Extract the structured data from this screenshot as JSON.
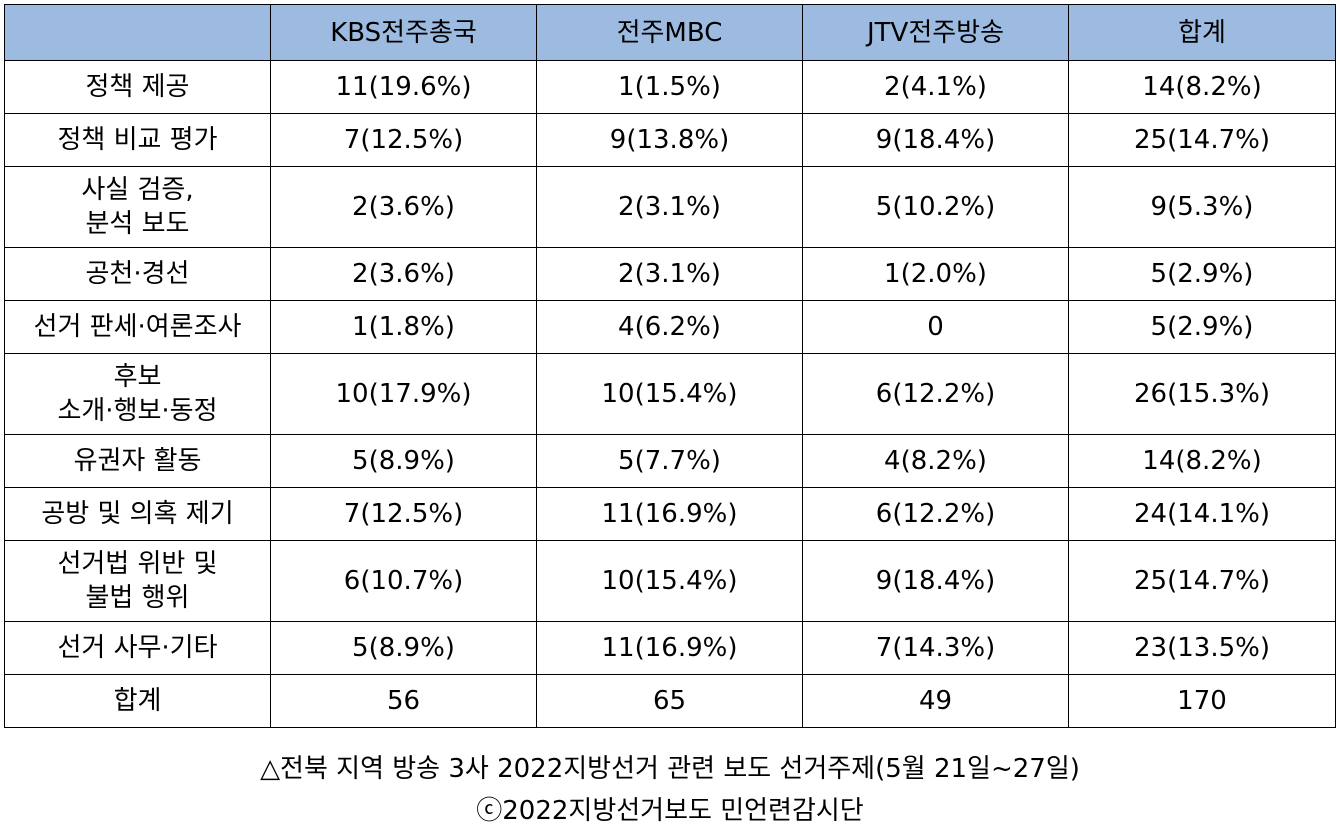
{
  "table": {
    "headers": [
      "",
      "KBS전주총국",
      "전주MBC",
      "JTV전주방송",
      "합계"
    ],
    "rows": [
      {
        "label": "정책 제공",
        "cells": [
          "11(19.6%)",
          "1(1.5%)",
          "2(4.1%)",
          "14(8.2%)"
        ]
      },
      {
        "label": "정책 비교 평가",
        "cells": [
          "7(12.5%)",
          "9(13.8%)",
          "9(18.4%)",
          "25(14.7%)"
        ]
      },
      {
        "label": "사실 검증,\n분석 보도",
        "cells": [
          "2(3.6%)",
          "2(3.1%)",
          "5(10.2%)",
          "9(5.3%)"
        ]
      },
      {
        "label": "공천·경선",
        "cells": [
          "2(3.6%)",
          "2(3.1%)",
          "1(2.0%)",
          "5(2.9%)"
        ]
      },
      {
        "label": "선거 판세·여론조사",
        "cells": [
          "1(1.8%)",
          "4(6.2%)",
          "0",
          "5(2.9%)"
        ]
      },
      {
        "label": "후보\n소개·행보·동정",
        "cells": [
          "10(17.9%)",
          "10(15.4%)",
          "6(12.2%)",
          "26(15.3%)"
        ]
      },
      {
        "label": "유권자 활동",
        "cells": [
          "5(8.9%)",
          "5(7.7%)",
          "4(8.2%)",
          "14(8.2%)"
        ]
      },
      {
        "label": "공방 및 의혹 제기",
        "cells": [
          "7(12.5%)",
          "11(16.9%)",
          "6(12.2%)",
          "24(14.1%)"
        ]
      },
      {
        "label": "선거법 위반 및\n불법 행위",
        "cells": [
          "6(10.7%)",
          "10(15.4%)",
          "9(18.4%)",
          "25(14.7%)"
        ]
      },
      {
        "label": "선거 사무·기타",
        "cells": [
          "5(8.9%)",
          "11(16.9%)",
          "7(14.3%)",
          "23(13.5%)"
        ]
      },
      {
        "label": "합계",
        "cells": [
          "56",
          "65",
          "49",
          "170"
        ]
      }
    ]
  },
  "caption": {
    "line1": "△전북 지역 방송 3사 2022지방선거 관련 보도 선거주제(5월 21일~27일)",
    "line2": "ⓒ2022지방선거보도 민언련감시단"
  },
  "colors": {
    "header_bg": "#9dbbe1",
    "border": "#000000"
  }
}
